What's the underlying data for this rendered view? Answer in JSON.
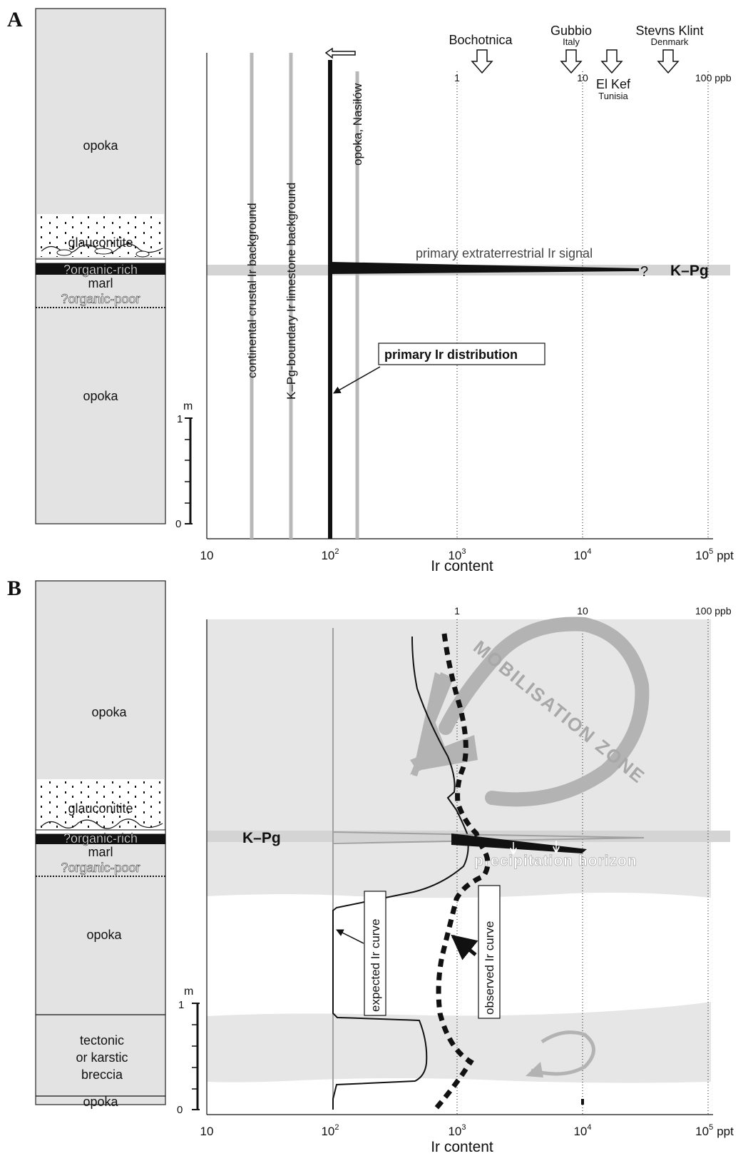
{
  "panel_a": {
    "letter": "A",
    "column": {
      "opoka_top": "opoka",
      "glauconitite": "glauconitite",
      "organic_rich": "?organic-rich",
      "marl": "marl",
      "organic_poor": "?organic-poor",
      "opoka_bottom": "opoka"
    },
    "scale": {
      "unit": "m",
      "tick_1": "1",
      "tick_0": "0"
    },
    "x_ticks": [
      "10",
      "10",
      "10",
      "10",
      "ppt"
    ],
    "x_tick_exponents": [
      "",
      "2",
      "3",
      "4",
      "5"
    ],
    "x_label": "Ir content",
    "ppb_ticks": [
      "1",
      "10",
      "100 ppb"
    ],
    "background_labels": {
      "continental": "continental crustal Ir background",
      "kpg_limestone": "K–Pg-boundary Ir limestone background",
      "opoka_nasilow": "opoka, Nasiłów"
    },
    "sites": [
      {
        "name": "Bochotnica",
        "country": ""
      },
      {
        "name": "Gubbio",
        "country": "Italy"
      },
      {
        "name": "El Kef",
        "country": "Tunisia"
      },
      {
        "name": "Stevns Klint",
        "country": "Denmark"
      }
    ],
    "signal_label": "primary extraterrestrial Ir signal",
    "question_mark": "?",
    "boundary_label": "K–Pg",
    "primary_box": "primary Ir distribution"
  },
  "panel_b": {
    "letter": "B",
    "column": {
      "opoka_top": "opoka",
      "glauconitite": "glauconitite",
      "organic_rich": "?organic-rich",
      "marl": "marl",
      "organic_poor": "?organic-poor",
      "opoka_mid": "opoka",
      "breccia_1": "tectonic",
      "breccia_2": "or karstic",
      "breccia_3": "breccia",
      "opoka_bottom": "opoka"
    },
    "scale": {
      "unit": "m",
      "tick_1": "1",
      "tick_0": "0"
    },
    "x_ticks": [
      "10",
      "10",
      "10",
      "10",
      "ppt"
    ],
    "x_tick_exponents": [
      "",
      "2",
      "3",
      "4",
      "5"
    ],
    "x_label": "Ir content",
    "ppb_ticks": [
      "1",
      "10",
      "100 ppb"
    ],
    "boundary_label": "K–Pg",
    "mobilisation": "MOBILISATION ZONE",
    "precipitation": "precipitation horizon",
    "expected_box": "expected  Ir curve",
    "observed_box": "observed Ir curve"
  },
  "colors": {
    "column_fill": "#e3e3e3",
    "band": "#d4d4d4",
    "zone": "#e6e6e6",
    "background_lines": "#b8b8b8",
    "arrow_grey": "#b3b3b3",
    "ink": "#111111"
  },
  "icons": [
    "down-arrow-icon",
    "left-arrow-icon",
    "curved-arrow-icon"
  ]
}
